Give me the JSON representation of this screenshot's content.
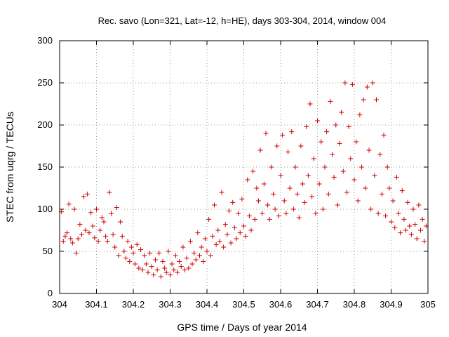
{
  "chart_data": {
    "type": "scatter",
    "title": "Rec. savo (Lon=321, Lat=-12, h=HE), days 303-304, 2014, window 004",
    "xlabel": "GPS time / Days of year 2014",
    "ylabel": "STEC from uqrg / TECUs",
    "xlim": [
      304,
      305
    ],
    "ylim": [
      0,
      300
    ],
    "xticks": [
      304,
      304.1,
      304.2,
      304.3,
      304.4,
      304.5,
      304.6,
      304.7,
      304.8,
      304.9,
      305
    ],
    "xtick_labels": [
      "304",
      "304.1",
      "304.2",
      "304.3",
      "304.4",
      "304.5",
      "304.6",
      "304.7",
      "304.8",
      "304.9",
      "305"
    ],
    "yticks": [
      0,
      50,
      100,
      150,
      200,
      250,
      300
    ],
    "ytick_labels": [
      "0",
      "50",
      "100",
      "150",
      "200",
      "250",
      "300"
    ],
    "grid": true,
    "marker": "+",
    "color": "#cc0000",
    "series": [
      {
        "name": "STEC",
        "points": [
          [
            304.005,
            97
          ],
          [
            304.01,
            62
          ],
          [
            304.015,
            68
          ],
          [
            304.02,
            72
          ],
          [
            304.025,
            106
          ],
          [
            304.03,
            65
          ],
          [
            304.035,
            60
          ],
          [
            304.04,
            100
          ],
          [
            304.045,
            48
          ],
          [
            304.05,
            65
          ],
          [
            304.055,
            82
          ],
          [
            304.06,
            70
          ],
          [
            304.065,
            115
          ],
          [
            304.07,
            75
          ],
          [
            304.075,
            118
          ],
          [
            304.08,
            72
          ],
          [
            304.085,
            96
          ],
          [
            304.09,
            80
          ],
          [
            304.095,
            66
          ],
          [
            304.1,
            100
          ],
          [
            304.105,
            62
          ],
          [
            304.11,
            75
          ],
          [
            304.115,
            90
          ],
          [
            304.12,
            85
          ],
          [
            304.125,
            68
          ],
          [
            304.13,
            62
          ],
          [
            304.135,
            120
          ],
          [
            304.14,
            95
          ],
          [
            304.145,
            70
          ],
          [
            304.15,
            55
          ],
          [
            304.155,
            102
          ],
          [
            304.16,
            45
          ],
          [
            304.165,
            85
          ],
          [
            304.17,
            68
          ],
          [
            304.175,
            50
          ],
          [
            304.18,
            42
          ],
          [
            304.185,
            62
          ],
          [
            304.19,
            38
          ],
          [
            304.195,
            55
          ],
          [
            304.2,
            48
          ],
          [
            304.205,
            35
          ],
          [
            304.21,
            58
          ],
          [
            304.215,
            30
          ],
          [
            304.22,
            52
          ],
          [
            304.225,
            28
          ],
          [
            304.23,
            45
          ],
          [
            304.235,
            35
          ],
          [
            304.24,
            25
          ],
          [
            304.245,
            48
          ],
          [
            304.25,
            32
          ],
          [
            304.255,
            22
          ],
          [
            304.26,
            40
          ],
          [
            304.265,
            28
          ],
          [
            304.27,
            48
          ],
          [
            304.275,
            20
          ],
          [
            304.28,
            38
          ],
          [
            304.285,
            30
          ],
          [
            304.29,
            25
          ],
          [
            304.295,
            50
          ],
          [
            304.3,
            22
          ],
          [
            304.305,
            35
          ],
          [
            304.31,
            28
          ],
          [
            304.315,
            45
          ],
          [
            304.32,
            25
          ],
          [
            304.325,
            38
          ],
          [
            304.33,
            32
          ],
          [
            304.335,
            55
          ],
          [
            304.34,
            28
          ],
          [
            304.345,
            42
          ],
          [
            304.35,
            30
          ],
          [
            304.355,
            62
          ],
          [
            304.36,
            35
          ],
          [
            304.365,
            48
          ],
          [
            304.37,
            40
          ],
          [
            304.375,
            72
          ],
          [
            304.38,
            45
          ],
          [
            304.385,
            55
          ],
          [
            304.39,
            38
          ],
          [
            304.395,
            65
          ],
          [
            304.4,
            50
          ],
          [
            304.405,
            88
          ],
          [
            304.41,
            45
          ],
          [
            304.415,
            68
          ],
          [
            304.42,
            105
          ],
          [
            304.425,
            58
          ],
          [
            304.43,
            75
          ],
          [
            304.435,
            62
          ],
          [
            304.44,
            120
          ],
          [
            304.445,
            55
          ],
          [
            304.45,
            82
          ],
          [
            304.455,
            70
          ],
          [
            304.46,
            98
          ],
          [
            304.465,
            60
          ],
          [
            304.47,
            108
          ],
          [
            304.475,
            78
          ],
          [
            304.48,
            65
          ],
          [
            304.485,
            95
          ],
          [
            304.49,
            72
          ],
          [
            304.495,
            112
          ],
          [
            304.5,
            80
          ],
          [
            304.505,
            68
          ],
          [
            304.51,
            135
          ],
          [
            304.515,
            92
          ],
          [
            304.52,
            75
          ],
          [
            304.525,
            145
          ],
          [
            304.53,
            88
          ],
          [
            304.535,
            125
          ],
          [
            304.54,
            110
          ],
          [
            304.545,
            170
          ],
          [
            304.55,
            95
          ],
          [
            304.555,
            130
          ],
          [
            304.56,
            190
          ],
          [
            304.565,
            105
          ],
          [
            304.57,
            88
          ],
          [
            304.575,
            150
          ],
          [
            304.58,
            118
          ],
          [
            304.585,
            100
          ],
          [
            304.59,
            175
          ],
          [
            304.595,
            92
          ],
          [
            304.6,
            140
          ],
          [
            304.605,
            188
          ],
          [
            304.61,
            110
          ],
          [
            304.615,
            95
          ],
          [
            304.62,
            168
          ],
          [
            304.625,
            125
          ],
          [
            304.63,
            192
          ],
          [
            304.635,
            100
          ],
          [
            304.64,
            150
          ],
          [
            304.645,
            118
          ],
          [
            304.65,
            90
          ],
          [
            304.655,
            175
          ],
          [
            304.66,
            130
          ],
          [
            304.665,
            108
          ],
          [
            304.67,
            198
          ],
          [
            304.675,
            140
          ],
          [
            304.68,
            225
          ],
          [
            304.685,
            115
          ],
          [
            304.69,
            160
          ],
          [
            304.695,
            95
          ],
          [
            304.7,
            205
          ],
          [
            304.705,
            130
          ],
          [
            304.71,
            180
          ],
          [
            304.715,
            100
          ],
          [
            304.72,
            150
          ],
          [
            304.725,
            192
          ],
          [
            304.73,
            118
          ],
          [
            304.735,
            228
          ],
          [
            304.74,
            165
          ],
          [
            304.745,
            138
          ],
          [
            304.75,
            200
          ],
          [
            304.755,
            105
          ],
          [
            304.76,
            178
          ],
          [
            304.765,
            215
          ],
          [
            304.77,
            145
          ],
          [
            304.775,
            250
          ],
          [
            304.78,
            120
          ],
          [
            304.785,
            198
          ],
          [
            304.79,
            160
          ],
          [
            304.795,
            248
          ],
          [
            304.8,
            135
          ],
          [
            304.805,
            180
          ],
          [
            304.81,
            110
          ],
          [
            304.815,
            212
          ],
          [
            304.82,
            150
          ],
          [
            304.825,
            230
          ],
          [
            304.83,
            125
          ],
          [
            304.835,
            245
          ],
          [
            304.84,
            170
          ],
          [
            304.845,
            100
          ],
          [
            304.85,
            250
          ],
          [
            304.855,
            140
          ],
          [
            304.86,
            230
          ],
          [
            304.865,
            95
          ],
          [
            304.87,
            165
          ],
          [
            304.875,
            118
          ],
          [
            304.88,
            188
          ],
          [
            304.885,
            92
          ],
          [
            304.89,
            150
          ],
          [
            304.895,
            125
          ],
          [
            304.9,
            85
          ],
          [
            304.905,
            110
          ],
          [
            304.91,
            78
          ],
          [
            304.915,
            138
          ],
          [
            304.92,
            95
          ],
          [
            304.925,
            72
          ],
          [
            304.93,
            122
          ],
          [
            304.935,
            88
          ],
          [
            304.94,
            75
          ],
          [
            304.945,
            108
          ],
          [
            304.95,
            80
          ],
          [
            304.955,
            70
          ],
          [
            304.96,
            100
          ],
          [
            304.965,
            82
          ],
          [
            304.97,
            65
          ],
          [
            304.975,
            105
          ],
          [
            304.98,
            75
          ],
          [
            304.985,
            88
          ],
          [
            304.99,
            62
          ],
          [
            304.995,
            80
          ]
        ]
      }
    ]
  }
}
